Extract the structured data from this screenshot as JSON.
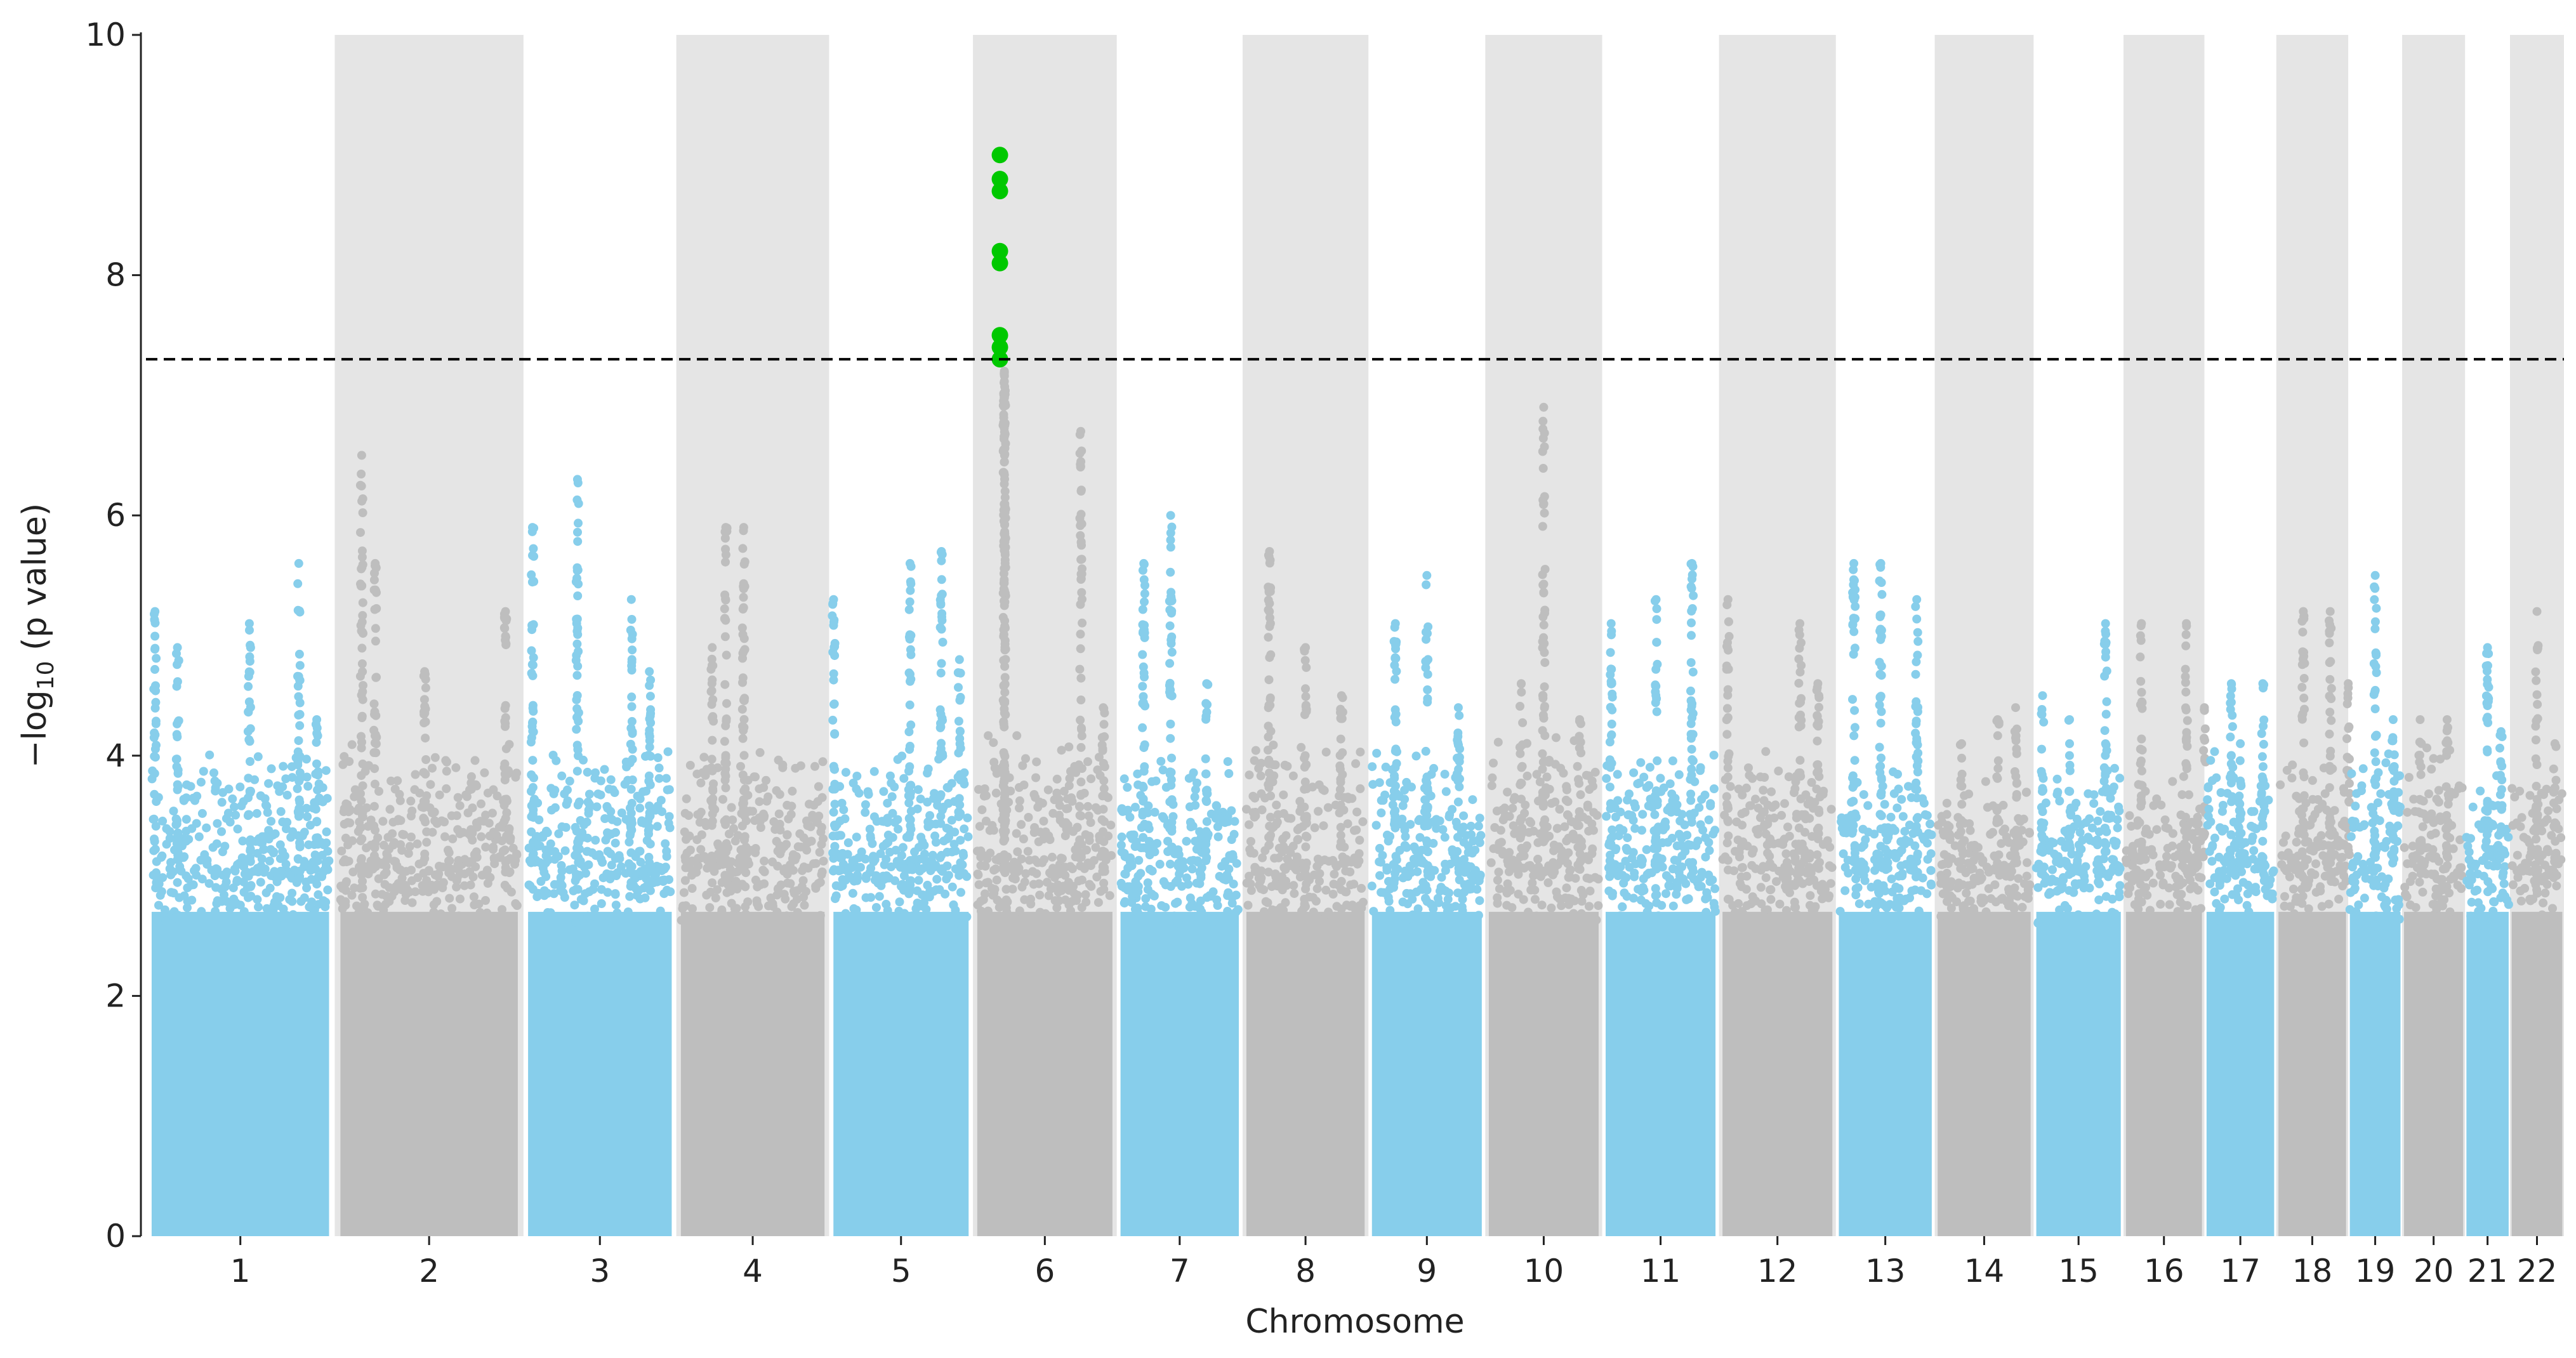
{
  "chart_data": {
    "type": "scatter",
    "subtype": "manhattan",
    "title": "",
    "xlabel": "Chromosome",
    "ylabel_parts": [
      "−log",
      "10",
      " (p value)"
    ],
    "ylim": [
      0,
      10
    ],
    "yticks": [
      "0",
      "2",
      "4",
      "6",
      "8",
      "10"
    ],
    "significance_threshold": 7.3,
    "colors": {
      "odd": "#87ceeb",
      "even": "#bebebe",
      "significant": "#00c800",
      "band": "#e5e5e5",
      "threshold": "#000000"
    },
    "chromosomes": [
      {
        "label": "1",
        "start": 0.0,
        "end": 2.1,
        "base": 3.6,
        "peaks": [
          [
            0.1,
            5.2
          ],
          [
            0.35,
            4.9
          ],
          [
            1.15,
            5.1
          ],
          [
            1.7,
            5.6
          ],
          [
            1.9,
            4.3
          ]
        ]
      },
      {
        "label": "2",
        "start": 2.1,
        "end": 4.2,
        "base": 3.7,
        "peaks": [
          [
            0.3,
            6.5
          ],
          [
            0.45,
            5.6
          ],
          [
            1.0,
            4.7
          ],
          [
            1.9,
            5.2
          ]
        ]
      },
      {
        "label": "3",
        "start": 4.2,
        "end": 5.9,
        "base": 3.6,
        "peaks": [
          [
            0.1,
            5.9
          ],
          [
            0.6,
            6.3
          ],
          [
            1.2,
            5.3
          ],
          [
            1.4,
            4.7
          ]
        ]
      },
      {
        "label": "4",
        "start": 5.9,
        "end": 7.6,
        "base": 3.6,
        "peaks": [
          [
            0.4,
            4.9
          ],
          [
            0.55,
            5.9
          ],
          [
            0.75,
            5.9
          ]
        ]
      },
      {
        "label": "5",
        "start": 7.6,
        "end": 9.2,
        "base": 3.6,
        "peaks": [
          [
            0.05,
            5.3
          ],
          [
            0.9,
            5.6
          ],
          [
            1.25,
            5.7
          ],
          [
            1.45,
            4.8
          ]
        ]
      },
      {
        "label": "6",
        "start": 9.2,
        "end": 10.8,
        "base": 3.7,
        "peaks": [
          [
            0.35,
            7.2
          ],
          [
            1.2,
            6.7
          ],
          [
            1.45,
            4.4
          ]
        ]
      },
      {
        "label": "7",
        "start": 10.8,
        "end": 12.2,
        "base": 3.5,
        "peaks": [
          [
            0.3,
            5.6
          ],
          [
            0.6,
            6.0
          ],
          [
            1.0,
            4.6
          ]
        ]
      },
      {
        "label": "8",
        "start": 12.2,
        "end": 13.6,
        "base": 3.7,
        "peaks": [
          [
            0.3,
            5.7
          ],
          [
            0.7,
            4.9
          ],
          [
            1.1,
            4.5
          ]
        ]
      },
      {
        "label": "9",
        "start": 13.6,
        "end": 14.9,
        "base": 3.6,
        "peaks": [
          [
            0.3,
            5.1
          ],
          [
            0.65,
            5.5
          ],
          [
            1.0,
            4.4
          ]
        ]
      },
      {
        "label": "10",
        "start": 14.9,
        "end": 16.2,
        "base": 3.7,
        "peaks": [
          [
            0.65,
            6.9
          ],
          [
            0.4,
            4.6
          ],
          [
            1.05,
            4.3
          ]
        ]
      },
      {
        "label": "11",
        "start": 16.2,
        "end": 17.5,
        "base": 3.7,
        "peaks": [
          [
            0.1,
            5.1
          ],
          [
            0.6,
            5.3
          ],
          [
            1.0,
            5.6
          ]
        ]
      },
      {
        "label": "12",
        "start": 17.5,
        "end": 18.8,
        "base": 3.6,
        "peaks": [
          [
            0.1,
            5.3
          ],
          [
            0.9,
            5.1
          ],
          [
            1.1,
            4.6
          ]
        ]
      },
      {
        "label": "13",
        "start": 18.8,
        "end": 19.9,
        "base": 3.4,
        "peaks": [
          [
            0.2,
            5.6
          ],
          [
            0.5,
            5.6
          ],
          [
            0.9,
            5.3
          ]
        ]
      },
      {
        "label": "14",
        "start": 19.9,
        "end": 21.0,
        "base": 3.3,
        "peaks": [
          [
            0.3,
            4.1
          ],
          [
            0.7,
            4.3
          ],
          [
            0.9,
            4.4
          ]
        ]
      },
      {
        "label": "15",
        "start": 21.0,
        "end": 22.0,
        "base": 3.5,
        "peaks": [
          [
            0.1,
            4.5
          ],
          [
            0.4,
            4.3
          ],
          [
            0.8,
            5.1
          ]
        ]
      },
      {
        "label": "16",
        "start": 22.0,
        "end": 22.9,
        "base": 3.4,
        "peaks": [
          [
            0.2,
            5.1
          ],
          [
            0.7,
            5.1
          ],
          [
            0.9,
            4.4
          ]
        ]
      },
      {
        "label": "17",
        "start": 22.9,
        "end": 23.7,
        "base": 3.6,
        "peaks": [
          [
            0.3,
            4.6
          ],
          [
            0.65,
            4.6
          ],
          [
            0.4,
            4.1
          ]
        ]
      },
      {
        "label": "18",
        "start": 23.7,
        "end": 24.5,
        "base": 3.7,
        "peaks": [
          [
            0.3,
            5.2
          ],
          [
            0.6,
            5.2
          ],
          [
            0.8,
            4.6
          ]
        ]
      },
      {
        "label": "19",
        "start": 24.5,
        "end": 25.1,
        "base": 3.6,
        "peaks": [
          [
            0.3,
            5.5
          ],
          [
            0.5,
            4.3
          ]
        ]
      },
      {
        "label": "20",
        "start": 25.1,
        "end": 25.8,
        "base": 3.6,
        "peaks": [
          [
            0.2,
            4.3
          ],
          [
            0.5,
            4.3
          ]
        ]
      },
      {
        "label": "21",
        "start": 25.8,
        "end": 26.3,
        "base": 3.4,
        "peaks": [
          [
            0.25,
            4.9
          ],
          [
            0.4,
            4.2
          ]
        ]
      },
      {
        "label": "22",
        "start": 26.3,
        "end": 26.9,
        "base": 3.4,
        "peaks": [
          [
            0.3,
            5.2
          ],
          [
            0.5,
            4.1
          ]
        ]
      }
    ],
    "significant_points": [
      {
        "chromosome": "6",
        "x": 9.5,
        "y": 9.0
      },
      {
        "chromosome": "6",
        "x": 9.5,
        "y": 8.8
      },
      {
        "chromosome": "6",
        "x": 9.5,
        "y": 8.7
      },
      {
        "chromosome": "6",
        "x": 9.5,
        "y": 8.2
      },
      {
        "chromosome": "6",
        "x": 9.5,
        "y": 8.1
      },
      {
        "chromosome": "6",
        "x": 9.5,
        "y": 7.5
      },
      {
        "chromosome": "6",
        "x": 9.5,
        "y": 7.4
      },
      {
        "chromosome": "6",
        "x": 9.5,
        "y": 7.3
      }
    ]
  }
}
